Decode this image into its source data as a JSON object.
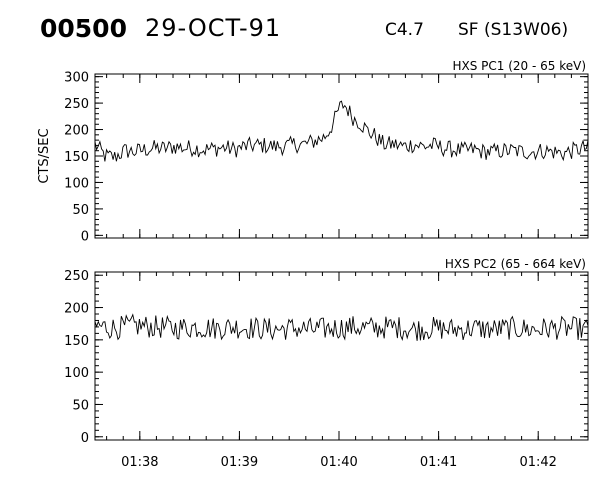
{
  "header": {
    "event_id": "00500",
    "date": "29-OCT-91",
    "goes_class": "C4.7",
    "flare_info": "SF (S13W06)"
  },
  "chart_data": [
    {
      "type": "line",
      "title": "HXS PC1 (20 - 65 keV)",
      "ylabel": "CTS/SEC",
      "xlabel": "",
      "xlim": [
        97.55,
        102.5
      ],
      "ylim": [
        -5,
        305
      ],
      "y_ticks": [
        0,
        50,
        100,
        150,
        200,
        250,
        300
      ],
      "x_ticks": [
        98,
        99,
        100,
        101,
        102
      ],
      "x_tick_labels": [
        "01:38",
        "01:39",
        "01:40",
        "01:41",
        "01:42"
      ],
      "show_x_tick_labels": false,
      "grid": false,
      "series": [
        {
          "x": [
            97.55,
            97.65,
            97.75,
            97.85,
            97.95,
            98.05,
            98.15,
            98.25,
            98.35,
            98.45,
            98.55,
            98.65,
            98.75,
            98.85,
            98.95,
            99.05,
            99.15,
            99.25,
            99.35,
            99.45,
            99.55,
            99.65,
            99.75,
            99.85,
            99.9,
            99.95,
            100.0,
            100.05,
            100.1,
            100.15,
            100.2,
            100.25,
            100.3,
            100.35,
            100.4,
            100.45,
            100.55,
            100.65,
            100.75,
            100.85,
            100.95,
            101.05,
            101.15,
            101.25,
            101.35,
            101.45,
            101.55,
            101.65,
            101.75,
            101.85,
            101.95,
            102.05,
            102.15,
            102.25,
            102.35,
            102.45,
            102.5
          ],
          "values": [
            172,
            150,
            148,
            160,
            158,
            162,
            165,
            164,
            168,
            165,
            165,
            162,
            164,
            166,
            162,
            168,
            170,
            170,
            168,
            168,
            172,
            172,
            178,
            185,
            198,
            215,
            240,
            248,
            235,
            220,
            215,
            205,
            195,
            190,
            180,
            172,
            172,
            168,
            172,
            168,
            170,
            165,
            162,
            160,
            162,
            158,
            158,
            160,
            160,
            158,
            158,
            160,
            158,
            155,
            160,
            165,
            165
          ]
        }
      ]
    },
    {
      "type": "line",
      "title": "HXS PC2 (65 - 664 keV)",
      "ylabel": "",
      "xlabel": "",
      "xlim": [
        97.55,
        102.5
      ],
      "ylim": [
        -5,
        255
      ],
      "y_ticks": [
        0,
        50,
        100,
        150,
        200,
        250
      ],
      "x_ticks": [
        98,
        99,
        100,
        101,
        102
      ],
      "x_tick_labels": [
        "01:38",
        "01:39",
        "01:40",
        "01:41",
        "01:42"
      ],
      "show_x_tick_labels": true,
      "grid": false,
      "series": [
        {
          "x": [
            97.55,
            97.75,
            97.95,
            98.15,
            98.35,
            98.55,
            98.75,
            98.95,
            99.15,
            99.35,
            99.55,
            99.75,
            99.95,
            100.15,
            100.35,
            100.55,
            100.75,
            100.95,
            101.15,
            101.35,
            101.55,
            101.75,
            101.95,
            102.15,
            102.35,
            102.5
          ],
          "values": [
            172,
            168,
            172,
            170,
            168,
            170,
            168,
            170,
            168,
            166,
            168,
            166,
            168,
            170,
            168,
            170,
            166,
            168,
            166,
            168,
            166,
            168,
            166,
            168,
            168,
            166
          ]
        }
      ]
    }
  ]
}
